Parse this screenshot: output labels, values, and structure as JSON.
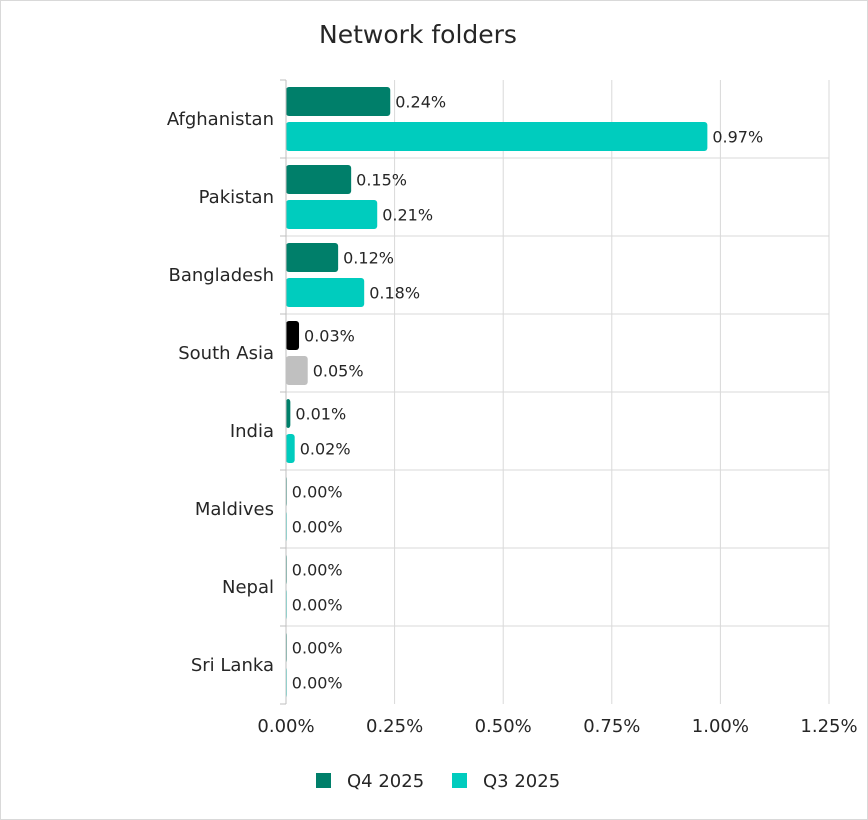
{
  "chart_data": {
    "type": "bar",
    "orientation": "horizontal",
    "title": "Network folders",
    "categories": [
      "Afghanistan",
      "Pakistan",
      "Bangladesh",
      "South Asia",
      "India",
      "Maldives",
      "Nepal",
      "Sri Lanka"
    ],
    "series": [
      {
        "name": "Q4 2025",
        "color": "#007f6a",
        "values": [
          0.24,
          0.15,
          0.12,
          0.03,
          0.01,
          0.0,
          0.0,
          0.0
        ],
        "labels": [
          "0.24%",
          "0.15%",
          "0.12%",
          "0.03%",
          "0.01%",
          "0.00%",
          "0.00%",
          "0.00%"
        ]
      },
      {
        "name": "Q3 2025",
        "color": "#00ccbe",
        "values": [
          0.97,
          0.21,
          0.18,
          0.05,
          0.02,
          0.0,
          0.0,
          0.0
        ],
        "labels": [
          "0.97%",
          "0.21%",
          "0.18%",
          "0.05%",
          "0.02%",
          "0.00%",
          "0.00%",
          "0.00%"
        ]
      }
    ],
    "highlight": {
      "category": "South Asia",
      "colors": [
        "#000000",
        "#c0c0c0"
      ]
    },
    "xlim": [
      0,
      1.25
    ],
    "xticks": [
      0,
      0.25,
      0.5,
      0.75,
      1.0,
      1.25
    ],
    "xtick_labels": [
      "0.00%",
      "0.25%",
      "0.50%",
      "0.75%",
      "1.00%",
      "1.25%"
    ],
    "xlabel": "",
    "ylabel": "",
    "grid": true,
    "legend_position": "bottom"
  }
}
